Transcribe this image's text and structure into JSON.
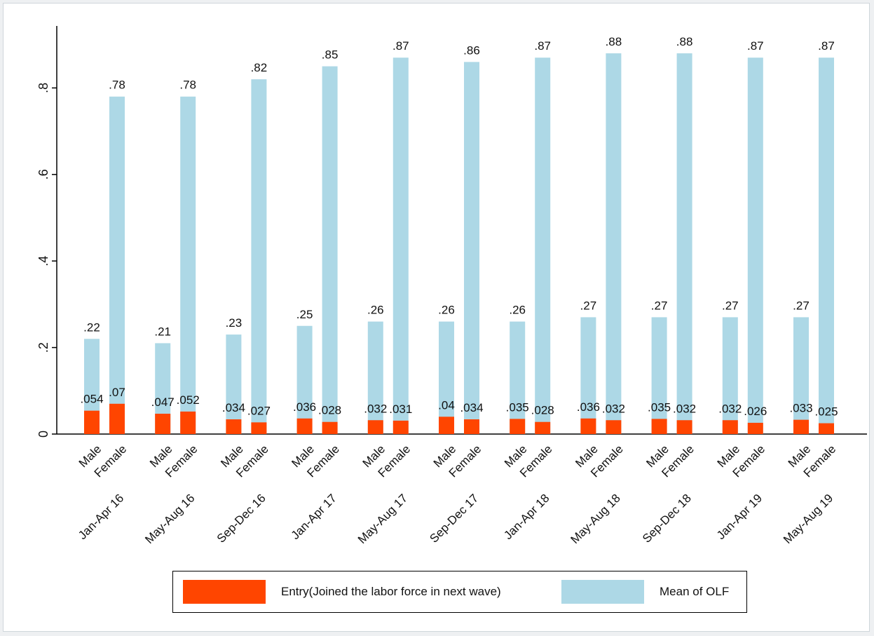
{
  "chart_data": {
    "type": "bar",
    "title": "",
    "xlabel": "",
    "ylabel": "",
    "ylim": [
      0,
      0.93
    ],
    "yticks": [
      0,
      0.2,
      0.4,
      0.6,
      0.8
    ],
    "ytick_labels": [
      "0",
      ".2",
      ".4",
      ".6",
      ".8"
    ],
    "grid": false,
    "legend_position": "bottom",
    "groups": [
      "Jan-Apr 16",
      "May-Aug 16",
      "Sep-Dec 16",
      "Jan-Apr 17",
      "May-Aug 17",
      "Sep-Dec 17",
      "Jan-Apr 18",
      "May-Aug 18",
      "Sep-Dec 18",
      "Jan-Apr 19",
      "May-Aug 19"
    ],
    "subcategories": [
      "Male",
      "Female"
    ],
    "series": [
      {
        "name": "Mean of OLF",
        "color": "#add8e6",
        "values": [
          [
            0.22,
            0.78
          ],
          [
            0.21,
            0.78
          ],
          [
            0.23,
            0.82
          ],
          [
            0.25,
            0.85
          ],
          [
            0.26,
            0.87
          ],
          [
            0.26,
            0.86
          ],
          [
            0.26,
            0.87
          ],
          [
            0.27,
            0.88
          ],
          [
            0.27,
            0.88
          ],
          [
            0.27,
            0.87
          ],
          [
            0.27,
            0.87
          ]
        ],
        "labels": [
          [
            ".22",
            ".78"
          ],
          [
            ".21",
            ".78"
          ],
          [
            ".23",
            ".82"
          ],
          [
            ".25",
            ".85"
          ],
          [
            ".26",
            ".87"
          ],
          [
            ".26",
            ".86"
          ],
          [
            ".26",
            ".87"
          ],
          [
            ".27",
            ".88"
          ],
          [
            ".27",
            ".88"
          ],
          [
            ".27",
            ".87"
          ],
          [
            ".27",
            ".87"
          ]
        ]
      },
      {
        "name": "Entry(Joined the labor force in next wave)",
        "color": "#ff4500",
        "values": [
          [
            0.054,
            0.07
          ],
          [
            0.047,
            0.052
          ],
          [
            0.034,
            0.027
          ],
          [
            0.036,
            0.028
          ],
          [
            0.032,
            0.031
          ],
          [
            0.04,
            0.034
          ],
          [
            0.035,
            0.028
          ],
          [
            0.036,
            0.032
          ],
          [
            0.035,
            0.032
          ],
          [
            0.032,
            0.026
          ],
          [
            0.033,
            0.025
          ]
        ],
        "labels": [
          [
            ".054",
            ".07"
          ],
          [
            ".047",
            ".052"
          ],
          [
            ".034",
            ".027"
          ],
          [
            ".036",
            ".028"
          ],
          [
            ".032",
            ".031"
          ],
          [
            ".04",
            ".034"
          ],
          [
            ".035",
            ".028"
          ],
          [
            ".036",
            ".032"
          ],
          [
            ".035",
            ".032"
          ],
          [
            ".032",
            ".026"
          ],
          [
            ".033",
            ".025"
          ]
        ]
      }
    ]
  },
  "legend": {
    "entry_label": "Entry(Joined the labor force in next wave)",
    "olf_label": "Mean of OLF",
    "entry_color": "#ff4500",
    "olf_color": "#add8e6"
  }
}
